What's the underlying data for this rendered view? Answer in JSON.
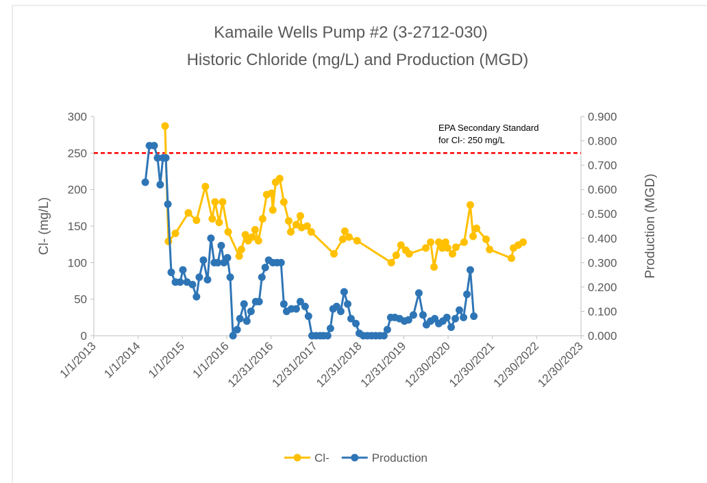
{
  "chart_data": {
    "type": "line",
    "title": [
      "Kamaile Wells Pump #2 (3-2712-030)",
      "Historic Chloride (mg/L) and Production (MGD)"
    ],
    "ylabel": "Cl- (mg/L)",
    "y2label": "Production (MGD)",
    "ylim": [
      0,
      300
    ],
    "yticks": [
      0,
      50,
      100,
      150,
      200,
      250,
      300
    ],
    "y2lim": [
      0,
      0.9
    ],
    "y2ticks": [
      {
        "value": 0,
        "label": "0.000"
      },
      {
        "value": 0.1,
        "label": "0.100"
      },
      {
        "value": 0.2,
        "label": "0.200"
      },
      {
        "value": 0.3,
        "label": "0.300"
      },
      {
        "value": 0.4,
        "label": "0.400"
      },
      {
        "value": 0.5,
        "label": "0.500"
      },
      {
        "value": 0.6,
        "label": "0.600"
      },
      {
        "value": 0.7,
        "label": "0.700"
      },
      {
        "value": 0.8,
        "label": "0.800"
      },
      {
        "value": 0.9,
        "label": "0.900"
      }
    ],
    "xlim": [
      "2013-01-01",
      "2023-12-30"
    ],
    "xticks": [
      {
        "value": "2013-01-01",
        "label": "1/1/2013"
      },
      {
        "value": "2014-01-01",
        "label": "1/1/2014"
      },
      {
        "value": "2015-01-01",
        "label": "1/1/2015"
      },
      {
        "value": "2016-01-01",
        "label": "1/1/2016"
      },
      {
        "value": "2016-12-31",
        "label": "12/31/2016"
      },
      {
        "value": "2017-12-31",
        "label": "12/31/2017"
      },
      {
        "value": "2018-12-31",
        "label": "12/31/2018"
      },
      {
        "value": "2019-12-31",
        "label": "12/31/2019"
      },
      {
        "value": "2020-12-30",
        "label": "12/30/2020"
      },
      {
        "value": "2021-12-30",
        "label": "12/30/2021"
      },
      {
        "value": "2022-12-30",
        "label": "12/30/2022"
      },
      {
        "value": "2023-12-30",
        "label": "12/30/2023"
      }
    ],
    "threshold": {
      "value": 250,
      "label": [
        "EPA Secondary Standard",
        "for Cl-:  250 mg/L"
      ],
      "color": "#ff0000"
    },
    "legend": "bottom",
    "series": [
      {
        "name": "Cl-",
        "color": "#ffc000",
        "x": [
          "2014-08-11",
          "2014-09-08",
          "2014-11-04",
          "2015-02-19",
          "2015-04-27",
          "2015-07-09",
          "2015-09-04",
          "2015-09-27",
          "2015-10-31",
          "2015-11-28",
          "2016-01-13",
          "2016-04-13",
          "2016-05-01",
          "2016-06-03",
          "2016-06-26",
          "2016-07-30",
          "2016-08-22",
          "2016-09-19",
          "2016-10-23",
          "2016-11-26",
          "2017-01-04",
          "2017-01-15",
          "2017-02-07",
          "2017-03-13",
          "2017-04-16",
          "2017-05-26",
          "2017-06-12",
          "2017-07-27",
          "2017-08-30",
          "2017-09-10",
          "2017-10-25",
          "2017-11-28",
          "2018-06-03",
          "2018-08-15",
          "2018-09-01",
          "2018-10-05",
          "2018-12-11",
          "2019-09-19",
          "2019-10-29",
          "2019-12-07",
          "2020-01-16",
          "2020-02-13",
          "2020-06-29",
          "2020-08-08",
          "2020-09-05",
          "2020-10-14",
          "2020-11-11",
          "2020-12-09",
          "2020-12-26",
          "2021-02-04",
          "2021-03-04",
          "2021-05-11",
          "2021-07-01",
          "2021-07-24",
          "2021-08-21",
          "2021-11-08",
          "2021-12-07",
          "2022-06-05",
          "2022-06-22",
          "2022-07-31",
          "2022-09-09"
        ],
        "values": [
          287,
          129,
          140,
          168,
          158,
          204,
          160,
          183,
          155,
          183,
          142,
          109,
          118,
          138,
          130,
          135,
          145,
          130,
          160,
          193,
          195,
          172,
          210,
          215,
          183,
          157,
          142,
          152,
          164,
          148,
          150,
          142,
          112,
          132,
          143,
          135,
          130,
          100,
          110,
          124,
          117,
          112,
          120,
          128,
          94,
          128,
          120,
          128,
          120,
          112,
          121,
          128,
          179,
          136,
          147,
          132,
          118,
          106,
          120,
          124,
          128
        ]
      },
      {
        "name": "Production",
        "color": "#2e75b6",
        "axis": "y2",
        "x": [
          "2014-03-01",
          "2014-04-04",
          "2014-05-13",
          "2014-06-10",
          "2014-07-02",
          "2014-07-25",
          "2014-08-17",
          "2014-09-03",
          "2014-10-01",
          "2014-11-04",
          "2014-12-13",
          "2015-01-05",
          "2015-02-08",
          "2015-03-25",
          "2015-04-27",
          "2015-05-20",
          "2015-06-23",
          "2015-07-27",
          "2015-08-24",
          "2015-09-21",
          "2015-10-20",
          "2015-11-17",
          "2015-12-10",
          "2016-01-07",
          "2016-01-30",
          "2016-02-22",
          "2016-03-27",
          "2016-04-19",
          "2016-05-23",
          "2016-06-15",
          "2016-07-19",
          "2016-08-27",
          "2016-09-24",
          "2016-10-17",
          "2016-11-14",
          "2016-12-12",
          "2017-01-15",
          "2017-02-18",
          "2017-03-24",
          "2017-04-16",
          "2017-05-09",
          "2017-06-17",
          "2017-07-27",
          "2017-08-30",
          "2017-10-08",
          "2017-11-05",
          "2017-12-04",
          "2018-01-06",
          "2018-02-09",
          "2018-03-09",
          "2018-04-12",
          "2018-05-05",
          "2018-05-27",
          "2018-06-25",
          "2018-07-29",
          "2018-08-26",
          "2018-09-24",
          "2018-10-22",
          "2018-12-01",
          "2018-12-29",
          "2019-02-01",
          "2019-03-06",
          "2019-04-09",
          "2019-05-13",
          "2019-06-16",
          "2019-07-20",
          "2019-08-17",
          "2019-09-14",
          "2019-10-18",
          "2019-11-26",
          "2020-01-05",
          "2020-02-08",
          "2020-03-19",
          "2020-05-03",
          "2020-06-06",
          "2020-07-04",
          "2020-08-08",
          "2020-09-11",
          "2020-10-14",
          "2020-11-17",
          "2020-12-20",
          "2021-01-24",
          "2021-02-27",
          "2021-04-02",
          "2021-05-06",
          "2021-06-03",
          "2021-07-01",
          "2021-07-30"
        ],
        "values": [
          0.63,
          0.78,
          0.78,
          0.73,
          0.62,
          0.73,
          0.73,
          0.54,
          0.26,
          0.22,
          0.22,
          0.27,
          0.22,
          0.21,
          0.16,
          0.24,
          0.31,
          0.23,
          0.4,
          0.3,
          0.3,
          0.37,
          0.3,
          0.32,
          0.24,
          0,
          0.025,
          0.07,
          0.13,
          0.06,
          0.1,
          0.14,
          0.14,
          0.24,
          0.28,
          0.31,
          0.3,
          0.3,
          0.3,
          0.13,
          0.1,
          0.11,
          0.11,
          0.14,
          0.12,
          0.08,
          0,
          0,
          0,
          0,
          0,
          0.03,
          0.11,
          0.12,
          0.1,
          0.18,
          0.13,
          0.07,
          0.05,
          0.01,
          0,
          0,
          0,
          0,
          0,
          0,
          0.025,
          0.075,
          0.075,
          0.07,
          0.06,
          0.065,
          0.085,
          0.175,
          0.085,
          0.045,
          0.06,
          0.07,
          0.05,
          0.06,
          0.075,
          0.035,
          0.07,
          0.105,
          0.075,
          0.17,
          0.27,
          0.08
        ]
      }
    ]
  }
}
